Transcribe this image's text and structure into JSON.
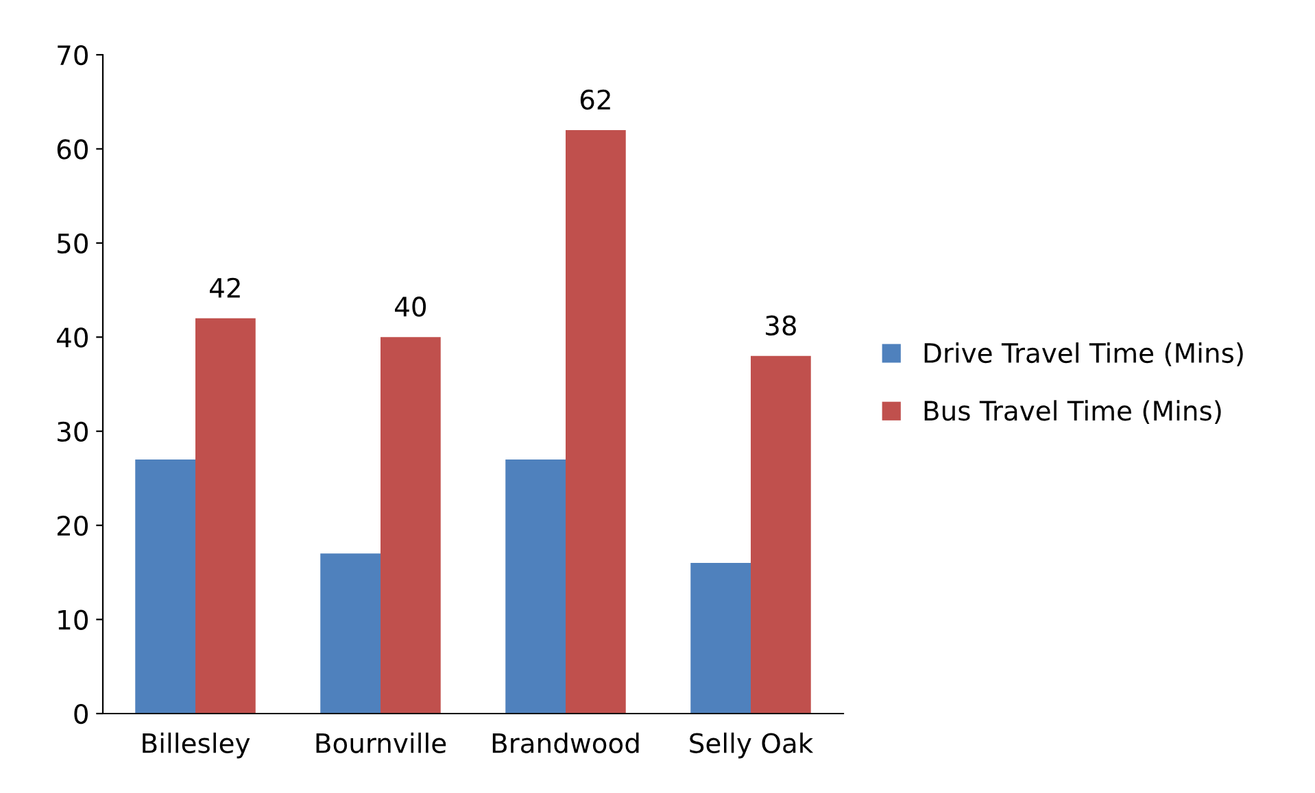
{
  "chart_data": {
    "type": "bar",
    "categories": [
      "Billesley",
      "Bournville",
      "Brandwood",
      "Selly Oak"
    ],
    "series": [
      {
        "name": "Drive Travel Time (Mins)",
        "color": "#4f81bd",
        "values": [
          27,
          17,
          27,
          16
        ]
      },
      {
        "name": "Bus Travel Time (Mins)",
        "color": "#c0504d",
        "values": [
          42,
          40,
          62,
          38
        ],
        "value_labels": [
          "42",
          "40",
          "62",
          "38"
        ]
      }
    ],
    "ylim": [
      0,
      70
    ],
    "yticks": [
      0,
      10,
      20,
      30,
      40,
      50,
      60,
      70
    ],
    "grid": false,
    "legend": "right"
  }
}
